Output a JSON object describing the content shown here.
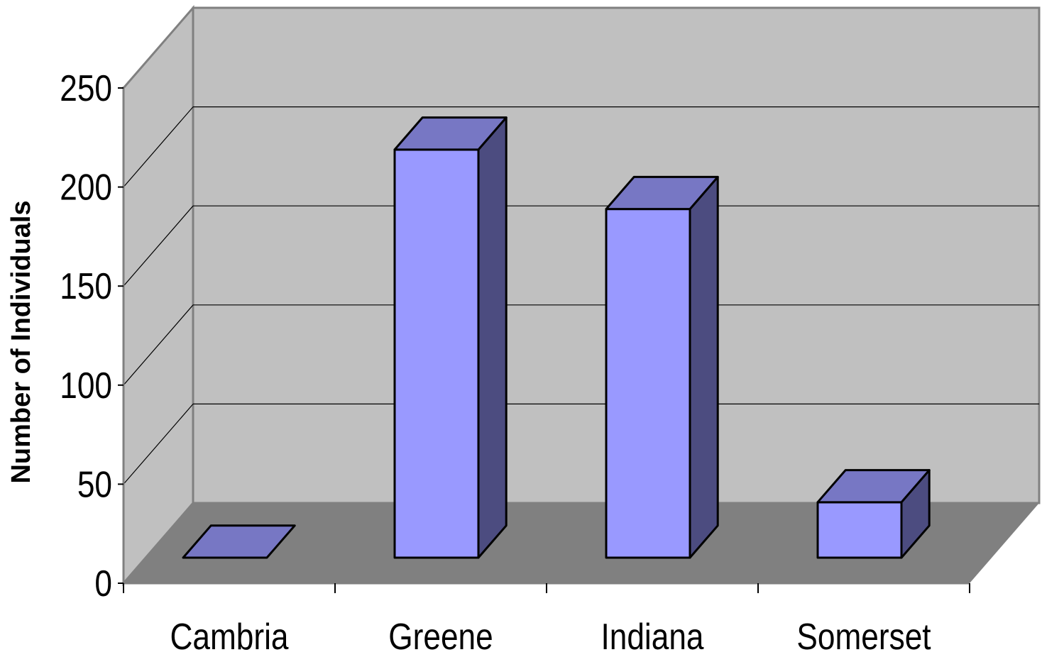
{
  "chart_data": {
    "type": "bar",
    "title": "",
    "xlabel": "",
    "ylabel": "Number of Individuals",
    "categories": [
      "Cambria",
      "Greene",
      "Indiana",
      "Somerset"
    ],
    "values": [
      0,
      206,
      176,
      28
    ],
    "ylim": [
      0,
      250
    ],
    "yticks": [
      0,
      50,
      100,
      150,
      200,
      250
    ],
    "grid": true,
    "legend": "none",
    "colors": {
      "bar_front": "#9999ff",
      "bar_top": "#7777c4",
      "bar_side": "#4c4c80",
      "back_wall": "#c0c0c0",
      "side_wall": "#c0c0c0",
      "floor": "#808080",
      "edge": "#000000"
    }
  }
}
